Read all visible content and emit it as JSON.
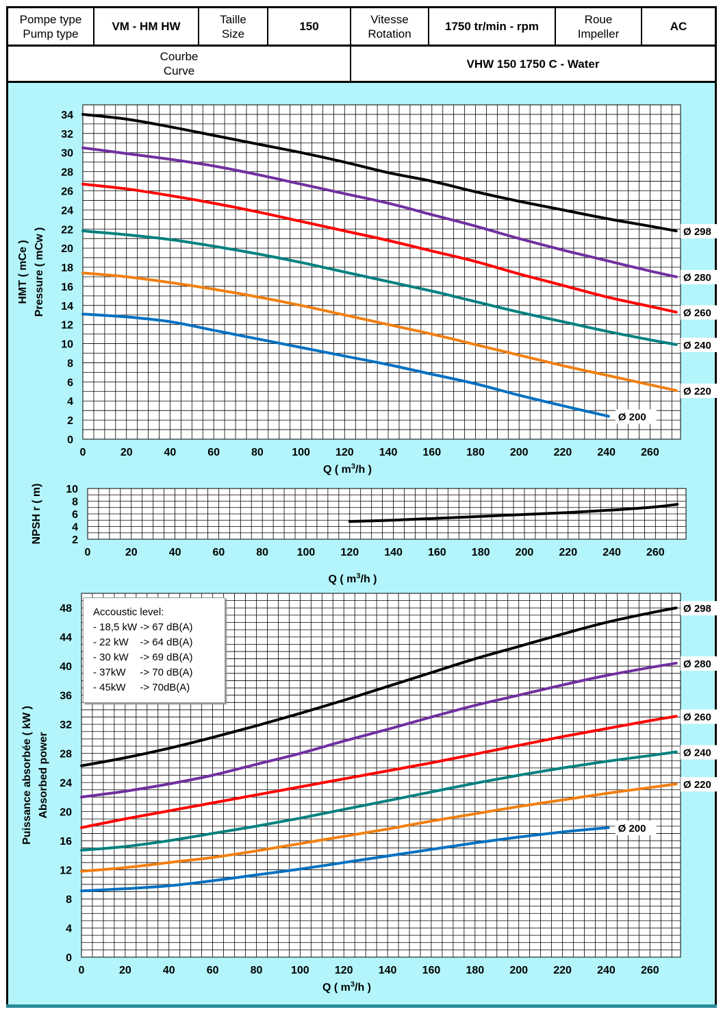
{
  "header": {
    "pump_type_label_fr": "Pompe type",
    "pump_type_label_en": "Pump type",
    "pump_type_value": "VM - HM HW",
    "size_label_fr": "Taille",
    "size_label_en": "Size",
    "size_value": "150",
    "speed_label_fr": "Vitesse",
    "speed_label_en": "Rotation",
    "speed_value": "1750 tr/min - rpm",
    "impeller_label_fr": "Roue",
    "impeller_label_en": "Impeller",
    "impeller_value": "AC",
    "curve_label_fr": "Courbe",
    "curve_label_en": "Curve",
    "curve_value": "VHW 150 1750 C - Water"
  },
  "acoustic": {
    "title": "Accoustic level:",
    "lines": [
      "- 18,5 kW -> 67 dB(A)",
      "- 22 kW    -> 64 dB(A)",
      "- 30 kW    -> 69 dB(A)",
      "- 37kW     -> 70 dB(A)",
      "- 45kW     -> 70dB(A)"
    ]
  },
  "colors": {
    "d298": "#000000",
    "d280": "#7030a0",
    "d260": "#ff0000",
    "d240": "#008080",
    "d220": "#f07f10",
    "d200": "#0070c0",
    "background": "#b3f5fb",
    "grid": "#000000"
  },
  "chart_data": [
    {
      "type": "line",
      "title": "",
      "xlabel_pre": "Q ( m",
      "xlabel_sup": "3",
      "xlabel_post": "/h )",
      "ylabel_lines": [
        "HMT ( mCe )",
        "Pressure ( mCw )"
      ],
      "xlim": [
        0,
        274
      ],
      "ylim": [
        0,
        35
      ],
      "xticks": [
        0,
        20,
        40,
        60,
        80,
        100,
        120,
        140,
        160,
        180,
        200,
        220,
        240,
        260
      ],
      "yticks": [
        0,
        2,
        4,
        6,
        8,
        10,
        12,
        14,
        16,
        18,
        20,
        22,
        24,
        26,
        28,
        30,
        32,
        34
      ],
      "grid": true,
      "series": [
        {
          "name": "Ø 298",
          "color": "#000000",
          "x": [
            0,
            20,
            40,
            60,
            80,
            100,
            120,
            140,
            160,
            180,
            200,
            220,
            240,
            260,
            272
          ],
          "y": [
            34.0,
            33.5,
            32.7,
            31.8,
            30.9,
            30.0,
            29.0,
            27.9,
            27.0,
            25.9,
            24.9,
            24.0,
            23.1,
            22.3,
            21.8
          ]
        },
        {
          "name": "Ø 280",
          "color": "#7030a0",
          "x": [
            0,
            20,
            40,
            60,
            80,
            100,
            120,
            140,
            160,
            180,
            200,
            220,
            240,
            260,
            272
          ],
          "y": [
            30.5,
            29.9,
            29.3,
            28.6,
            27.7,
            26.7,
            25.7,
            24.7,
            23.5,
            22.3,
            21.0,
            19.8,
            18.7,
            17.6,
            17.0
          ]
        },
        {
          "name": "Ø 260",
          "color": "#ff0000",
          "x": [
            0,
            20,
            40,
            60,
            80,
            100,
            120,
            140,
            160,
            180,
            200,
            220,
            240,
            260,
            272
          ],
          "y": [
            26.7,
            26.2,
            25.5,
            24.7,
            23.8,
            22.8,
            21.8,
            20.8,
            19.7,
            18.6,
            17.3,
            16.1,
            14.9,
            13.9,
            13.3
          ]
        },
        {
          "name": "Ø 240",
          "color": "#008080",
          "x": [
            0,
            20,
            40,
            60,
            80,
            100,
            120,
            140,
            160,
            180,
            200,
            220,
            240,
            260,
            272
          ],
          "y": [
            21.8,
            21.4,
            20.9,
            20.2,
            19.4,
            18.5,
            17.5,
            16.5,
            15.5,
            14.4,
            13.3,
            12.3,
            11.3,
            10.4,
            9.9
          ]
        },
        {
          "name": "Ø 220",
          "color": "#f07f10",
          "x": [
            0,
            20,
            40,
            60,
            80,
            100,
            120,
            140,
            160,
            180,
            200,
            220,
            240,
            260,
            272
          ],
          "y": [
            17.4,
            17.0,
            16.4,
            15.7,
            14.9,
            14.0,
            13.0,
            12.0,
            11.0,
            9.9,
            8.8,
            7.7,
            6.7,
            5.7,
            5.1
          ]
        },
        {
          "name": "Ø 200",
          "color": "#0070c0",
          "x": [
            0,
            20,
            40,
            60,
            80,
            100,
            120,
            140,
            160,
            180,
            200,
            220,
            241
          ],
          "y": [
            13.1,
            12.8,
            12.3,
            11.4,
            10.5,
            9.6,
            8.7,
            7.8,
            6.8,
            5.8,
            4.6,
            3.5,
            2.4
          ]
        }
      ]
    },
    {
      "type": "line",
      "title": "",
      "xlabel_pre": "Q ( m",
      "xlabel_sup": "3",
      "xlabel_post": "/h )",
      "ylabel": "NPSH r ( m)",
      "xlim": [
        0,
        274
      ],
      "ylim": [
        2,
        10
      ],
      "xticks": [
        0,
        20,
        40,
        60,
        80,
        100,
        120,
        140,
        160,
        180,
        200,
        220,
        240,
        260
      ],
      "yticks": [
        2,
        4,
        6,
        8,
        10
      ],
      "grid": true,
      "series": [
        {
          "color": "#000000",
          "x": [
            120,
            140,
            160,
            180,
            200,
            220,
            240,
            260,
            270
          ],
          "y": [
            4.8,
            5.0,
            5.3,
            5.6,
            5.9,
            6.2,
            6.6,
            7.1,
            7.5
          ]
        }
      ]
    },
    {
      "type": "line",
      "title": "",
      "xlabel_pre": "Q ( m",
      "xlabel_sup": "3",
      "xlabel_post": "/h )",
      "ylabel_lines": [
        "Puissance absorbée ( kW )",
        "Absorbed power"
      ],
      "xlim": [
        0,
        274
      ],
      "ylim": [
        0,
        50
      ],
      "xticks": [
        0,
        20,
        40,
        60,
        80,
        100,
        120,
        140,
        160,
        180,
        200,
        220,
        240,
        260
      ],
      "yticks": [
        0,
        4,
        8,
        12,
        16,
        20,
        24,
        28,
        32,
        36,
        40,
        44,
        48
      ],
      "grid": true,
      "series": [
        {
          "name": "Ø 298",
          "color": "#000000",
          "x": [
            0,
            20,
            40,
            60,
            80,
            100,
            120,
            140,
            160,
            180,
            200,
            220,
            240,
            260,
            272
          ],
          "y": [
            26.3,
            27.4,
            28.7,
            30.2,
            31.8,
            33.5,
            35.3,
            37.2,
            39.1,
            41.0,
            42.7,
            44.4,
            46.0,
            47.3,
            48.0
          ]
        },
        {
          "name": "Ø 280",
          "color": "#7030a0",
          "x": [
            0,
            20,
            40,
            60,
            80,
            100,
            120,
            140,
            160,
            180,
            200,
            220,
            240,
            260,
            272
          ],
          "y": [
            22.0,
            22.8,
            23.8,
            25.0,
            26.5,
            28.0,
            29.7,
            31.3,
            33.0,
            34.6,
            36.0,
            37.4,
            38.7,
            39.8,
            40.4
          ]
        },
        {
          "name": "Ø 260",
          "color": "#ff0000",
          "x": [
            0,
            20,
            40,
            60,
            80,
            100,
            120,
            140,
            160,
            180,
            200,
            220,
            240,
            260,
            272
          ],
          "y": [
            17.8,
            19.0,
            20.1,
            21.2,
            22.3,
            23.4,
            24.5,
            25.6,
            26.7,
            27.9,
            29.1,
            30.3,
            31.4,
            32.5,
            33.1
          ]
        },
        {
          "name": "Ø 240",
          "color": "#008080",
          "x": [
            0,
            20,
            40,
            60,
            80,
            100,
            120,
            140,
            160,
            180,
            200,
            220,
            240,
            260,
            272
          ],
          "y": [
            14.7,
            15.2,
            16.0,
            17.0,
            18.0,
            19.1,
            20.3,
            21.5,
            22.7,
            23.9,
            25.0,
            26.0,
            26.9,
            27.7,
            28.2
          ]
        },
        {
          "name": "Ø 220",
          "color": "#f07f10",
          "x": [
            0,
            20,
            40,
            60,
            80,
            100,
            120,
            140,
            160,
            180,
            200,
            220,
            240,
            260,
            272
          ],
          "y": [
            11.8,
            12.3,
            13.0,
            13.7,
            14.6,
            15.6,
            16.6,
            17.6,
            18.7,
            19.7,
            20.7,
            21.6,
            22.5,
            23.3,
            23.8
          ]
        },
        {
          "name": "Ø 200",
          "color": "#0070c0",
          "x": [
            0,
            20,
            40,
            60,
            80,
            100,
            120,
            140,
            160,
            180,
            200,
            220,
            241
          ],
          "y": [
            9.1,
            9.4,
            9.8,
            10.5,
            11.3,
            12.1,
            13.0,
            13.9,
            14.8,
            15.7,
            16.5,
            17.2,
            17.8
          ]
        }
      ]
    }
  ]
}
